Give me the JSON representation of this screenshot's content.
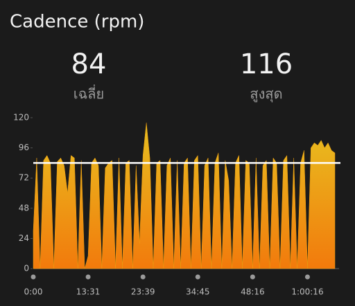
{
  "chart_data": {
    "type": "area",
    "title": "Cadence (rpm)",
    "average": 84,
    "average_label": "เฉลี่ย",
    "max": 116,
    "max_label": "สูงสุด",
    "categories": [
      "0:00",
      null,
      null,
      null,
      null,
      null,
      null,
      null,
      null,
      null,
      null,
      null,
      null,
      null,
      null,
      null,
      "13:31",
      null,
      null,
      null,
      null,
      null,
      null,
      null,
      null,
      null,
      null,
      null,
      null,
      null,
      null,
      null,
      "23:39",
      null,
      null,
      null,
      null,
      null,
      null,
      null,
      null,
      null,
      null,
      null,
      null,
      null,
      null,
      null,
      "34:45",
      null,
      null,
      null,
      null,
      null,
      null,
      null,
      null,
      null,
      null,
      null,
      null,
      null,
      null,
      null,
      "48:16",
      null,
      null,
      null,
      null,
      null,
      null,
      null,
      null,
      null,
      null,
      null,
      null,
      null,
      null,
      null,
      "1:00:16",
      null,
      null,
      null,
      null,
      null,
      null,
      null,
      null
    ],
    "series": [
      {
        "name": "Cadence",
        "color": "#f0a010",
        "values": [
          30,
          88,
          0,
          86,
          90,
          84,
          0,
          85,
          88,
          82,
          60,
          90,
          88,
          0,
          86,
          0,
          10,
          84,
          88,
          82,
          0,
          80,
          84,
          86,
          0,
          88,
          0,
          84,
          86,
          0,
          82,
          20,
          90,
          116,
          88,
          0,
          84,
          86,
          0,
          82,
          88,
          0,
          86,
          0,
          84,
          88,
          0,
          86,
          90,
          0,
          82,
          88,
          0,
          84,
          92,
          0,
          86,
          70,
          0,
          84,
          90,
          0,
          86,
          84,
          0,
          88,
          0,
          82,
          86,
          0,
          88,
          84,
          0,
          86,
          90,
          0,
          88,
          0,
          84,
          94,
          0,
          96,
          100,
          98,
          102,
          96,
          100,
          94,
          92
        ]
      }
    ],
    "ylim": [
      0,
      120
    ],
    "yticks": [
      0,
      24,
      48,
      72,
      96,
      120
    ]
  }
}
